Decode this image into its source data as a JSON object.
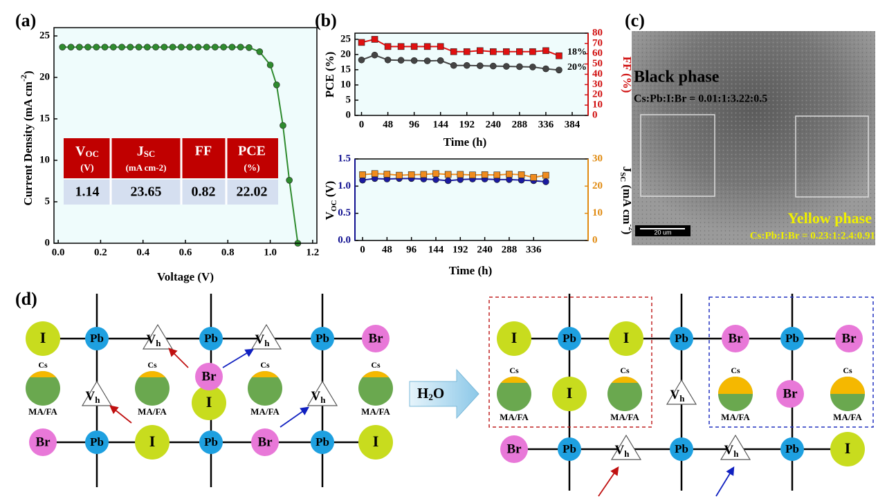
{
  "panel_labels": [
    "(a)",
    "(b)",
    "(c)",
    "(d)"
  ],
  "chart_data": [
    {
      "type": "line",
      "xlabel": "Voltage (V)",
      "ylabel": [
        "Current Density (mA cm",
        "-2",
        ")"
      ],
      "x": [
        0.02,
        0.06,
        0.1,
        0.14,
        0.18,
        0.22,
        0.26,
        0.3,
        0.34,
        0.38,
        0.42,
        0.46,
        0.5,
        0.54,
        0.58,
        0.62,
        0.66,
        0.7,
        0.74,
        0.78,
        0.82,
        0.86,
        0.9,
        0.95,
        1.0,
        1.03,
        1.06,
        1.09,
        1.13
      ],
      "series": [
        {
          "color": "#2e8b2e",
          "marker": "circle",
          "values": [
            23.65,
            23.65,
            23.65,
            23.65,
            23.65,
            23.65,
            23.65,
            23.65,
            23.65,
            23.65,
            23.65,
            23.65,
            23.65,
            23.65,
            23.65,
            23.65,
            23.65,
            23.65,
            23.65,
            23.65,
            23.65,
            23.65,
            23.6,
            23.1,
            21.5,
            19.1,
            14.2,
            7.6,
            0
          ]
        }
      ],
      "xlim": [
        -0.02,
        1.22
      ],
      "xticks": [
        {
          "value": 0,
          "label": "0.0"
        },
        {
          "value": 0.2,
          "label": "0.2"
        },
        {
          "value": 0.4,
          "label": "0.4"
        },
        {
          "value": 0.6,
          "label": "0.6"
        },
        {
          "value": 0.8,
          "label": "0.8"
        },
        {
          "value": 1.0,
          "label": "1.0"
        },
        {
          "value": 1.2,
          "label": "1.2"
        }
      ],
      "ylim": [
        0,
        26
      ],
      "yticks": [
        0,
        5,
        10,
        15,
        20,
        25
      ]
    },
    {
      "type": "line",
      "xlabel": "Time (h)",
      "ylabel": "PCE (%)",
      "y2label": "FF (%)",
      "y2color": "#d01010",
      "x": [
        0,
        24,
        48,
        72,
        96,
        120,
        144,
        168,
        192,
        216,
        240,
        264,
        288,
        312,
        336,
        360
      ],
      "series": [
        {
          "color": "#444444",
          "marker": "circle",
          "values": [
            18.2,
            19.8,
            18.2,
            18.1,
            18.0,
            17.9,
            18.0,
            16.4,
            16.4,
            16.3,
            16.2,
            16.1,
            16.0,
            15.9,
            15.3,
            14.9
          ]
        },
        {
          "color": "#e01010",
          "marker": "square",
          "axis": "y2",
          "values": [
            71,
            74,
            67,
            67,
            67,
            67,
            67,
            62,
            62,
            63,
            62,
            62,
            62,
            62,
            63,
            58
          ]
        }
      ],
      "annotations": [
        "18%",
        "20%"
      ],
      "xlim": [
        -12,
        413
      ],
      "xticks": [
        0,
        48,
        96,
        144,
        192,
        240,
        288,
        336,
        384
      ],
      "ylim": [
        0,
        27
      ],
      "yticks": [
        0,
        5,
        10,
        15,
        20,
        25
      ],
      "y2lim": [
        0,
        80
      ],
      "y2ticks": [
        0,
        10,
        20,
        30,
        40,
        50,
        60,
        70,
        80
      ]
    },
    {
      "type": "line",
      "xlabel": "Time (h)",
      "ylabel": [
        "V",
        "OC",
        " (V)"
      ],
      "y2label": [
        "J",
        "SC",
        " (mA cm",
        "-2",
        ")"
      ],
      "ycolor": "#101090",
      "y2color": "#e08a10",
      "x": [
        0,
        24,
        48,
        72,
        96,
        120,
        144,
        168,
        192,
        216,
        240,
        264,
        288,
        312,
        336,
        360
      ],
      "series": [
        {
          "color": "#1a1aa0",
          "marker": "circle",
          "values": [
            1.11,
            1.14,
            1.13,
            1.14,
            1.14,
            1.13,
            1.12,
            1.1,
            1.12,
            1.13,
            1.13,
            1.12,
            1.12,
            1.11,
            1.1,
            1.08
          ]
        },
        {
          "color": "#f08c1e",
          "marker": "square",
          "axis": "y2",
          "values": [
            24.2,
            24.6,
            24.4,
            24.0,
            24.2,
            24.3,
            24.6,
            24.3,
            24.3,
            24.1,
            24.2,
            24.1,
            24.4,
            24.2,
            23.2,
            24.0
          ]
        }
      ],
      "xlim": [
        -15,
        443
      ],
      "xticks": [
        0,
        48,
        96,
        144,
        192,
        240,
        288,
        336
      ],
      "ylim": [
        0,
        1.5
      ],
      "yticks": [
        {
          "value": 0,
          "label": "0.0"
        },
        0.5,
        {
          "value": 1,
          "label": "1.0"
        },
        1.5
      ],
      "y2lim": [
        0,
        30
      ],
      "y2ticks": [
        0,
        10,
        20,
        30
      ]
    }
  ],
  "table": {
    "header": [
      {
        "main": "V",
        "sub": "OC",
        "unit": "(V)"
      },
      {
        "main": "J",
        "sub": "SC",
        "unit": "(mA cm-2)"
      },
      {
        "main": "FF"
      },
      {
        "main": "PCE",
        "unit": "(%)"
      }
    ],
    "rows": [
      [
        "1.14",
        "23.65",
        "0.82",
        "22.02"
      ]
    ]
  },
  "sem": {
    "black": "Black phase",
    "black_ratio": "Cs:Pb:I:Br = 0.01:1:3.22:0.5",
    "yellow": "Yellow phase",
    "yellow_ratio": "Cs:Pb:I:Br = 0.23:1:2.4:0.91",
    "scale": "20 um"
  },
  "diagram": {
    "left": [
      {
        "label": "I"
      },
      {
        "label": "Pb"
      },
      {
        "label": "V",
        "sub": "h"
      },
      {
        "label": "Pb"
      },
      {
        "label": "V",
        "sub": "h"
      },
      {
        "label": "Pb"
      },
      {
        "label": "Br"
      },
      {
        "label": "MA/FA",
        "top": "Cs",
        "cap_size": "small"
      },
      {
        "label": "V",
        "sub": "h"
      },
      {
        "label": "MA/FA",
        "top": "Cs",
        "cap_size": "small"
      },
      {
        "label": "I"
      },
      {
        "label": "Br"
      },
      {
        "label": "MA/FA",
        "top": "Cs",
        "cap_size": "small"
      },
      {
        "label": "V",
        "sub": "h"
      },
      {
        "label": "MA/FA",
        "top": "Cs",
        "cap_size": "small"
      },
      {
        "label": "Br"
      },
      {
        "label": "Pb"
      },
      {
        "label": "I"
      },
      {
        "label": "Pb"
      },
      {
        "label": "Br"
      },
      {
        "label": "Pb"
      },
      {
        "label": "I"
      }
    ],
    "arrow_label": {
      "main": "H",
      "sub": "2",
      "tail": "O"
    },
    "right": [
      {
        "label": "I"
      },
      {
        "label": "Pb"
      },
      {
        "label": "I"
      },
      {
        "label": "Pb"
      },
      {
        "label": "Br"
      },
      {
        "label": "Pb"
      },
      {
        "label": "Br"
      },
      {
        "label": "MA/FA",
        "top": "Cs",
        "cap_size": "small"
      },
      {
        "label": "I"
      },
      {
        "label": "MA/FA",
        "top": "Cs",
        "cap_size": "small"
      },
      {
        "label": "V",
        "sub": "h"
      },
      {
        "label": "MA/FA",
        "top": "Cs",
        "cap_size": "large"
      },
      {
        "label": "Br"
      },
      {
        "label": "MA/FA",
        "top": "Cs",
        "cap_size": "large"
      },
      {
        "label": "Br"
      },
      {
        "label": "Pb"
      },
      {
        "label": "V",
        "sub": "h"
      },
      {
        "label": "Pb"
      },
      {
        "label": "V",
        "sub": "h"
      },
      {
        "label": "Pb"
      },
      {
        "label": "I"
      }
    ]
  }
}
